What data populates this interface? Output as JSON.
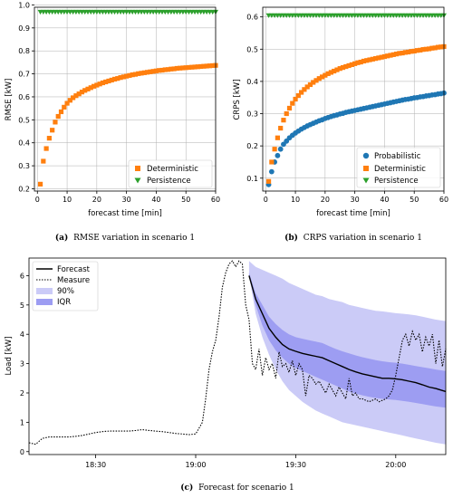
{
  "colors": {
    "orange": "#ff7f0e",
    "green": "#2ca02c",
    "blue": "#1f77b4",
    "band90": "#cbcbf7",
    "bandIqr": "#9d9df2",
    "forecast": "#000000"
  },
  "chart_data": [
    {
      "id": "rmse",
      "type": "scatter",
      "caption_tag": "(a)",
      "caption_text": "RMSE variation in scenario 1",
      "xlabel": "forecast time [min]",
      "ylabel": "RMSE [kW]",
      "xlim": [
        -1,
        60
      ],
      "ylim": [
        0.19,
        0.99
      ],
      "xticks": [
        0,
        10,
        20,
        30,
        40,
        50,
        60
      ],
      "yticks": [
        0.2,
        0.3,
        0.4,
        0.5,
        0.6,
        0.7,
        0.8,
        0.9,
        1.0
      ],
      "ytick_labels": [
        "0.2",
        "0.3",
        "0.4",
        "0.5",
        "0.6",
        "0.7",
        "0.8",
        "0.9",
        "1.0"
      ],
      "grid": true,
      "legend_position": "lower-right",
      "x": [
        1,
        2,
        3,
        4,
        5,
        6,
        7,
        8,
        9,
        10,
        11,
        12,
        13,
        14,
        15,
        16,
        17,
        18,
        19,
        20,
        21,
        22,
        23,
        24,
        25,
        26,
        27,
        28,
        29,
        30,
        31,
        32,
        33,
        34,
        35,
        36,
        37,
        38,
        39,
        40,
        41,
        42,
        43,
        44,
        45,
        46,
        47,
        48,
        49,
        50,
        51,
        52,
        53,
        54,
        55,
        56,
        57,
        58,
        59,
        60
      ],
      "series": [
        {
          "name": "Deterministic",
          "marker": "square",
          "color": "#ff7f0e",
          "values": [
            0.22,
            0.32,
            0.375,
            0.42,
            0.455,
            0.49,
            0.515,
            0.535,
            0.555,
            0.572,
            0.585,
            0.596,
            0.605,
            0.613,
            0.621,
            0.628,
            0.634,
            0.64,
            0.646,
            0.651,
            0.656,
            0.661,
            0.665,
            0.669,
            0.673,
            0.677,
            0.68,
            0.684,
            0.687,
            0.69,
            0.693,
            0.696,
            0.698,
            0.701,
            0.703,
            0.705,
            0.707,
            0.709,
            0.711,
            0.713,
            0.715,
            0.716,
            0.718,
            0.719,
            0.721,
            0.722,
            0.724,
            0.725,
            0.726,
            0.727,
            0.728,
            0.729,
            0.73,
            0.731,
            0.732,
            0.733,
            0.734,
            0.735,
            0.736,
            0.737
          ]
        },
        {
          "name": "Persistence",
          "marker": "triangle-down",
          "color": "#2ca02c",
          "values": [
            0.97,
            0.97,
            0.97,
            0.97,
            0.97,
            0.97,
            0.97,
            0.97,
            0.97,
            0.97,
            0.97,
            0.97,
            0.97,
            0.97,
            0.97,
            0.97,
            0.97,
            0.97,
            0.97,
            0.97,
            0.97,
            0.97,
            0.97,
            0.97,
            0.97,
            0.97,
            0.97,
            0.97,
            0.97,
            0.97,
            0.97,
            0.97,
            0.97,
            0.97,
            0.97,
            0.97,
            0.97,
            0.97,
            0.97,
            0.97,
            0.97,
            0.97,
            0.97,
            0.97,
            0.97,
            0.97,
            0.97,
            0.97,
            0.97,
            0.97,
            0.97,
            0.97,
            0.97,
            0.97,
            0.97,
            0.97,
            0.97,
            0.97,
            0.97,
            0.97
          ]
        }
      ]
    },
    {
      "id": "crps",
      "type": "scatter",
      "caption_tag": "(b)",
      "caption_text": "CRPS variation in scenario 1",
      "xlabel": "forecast time [min]",
      "ylabel": "CRPS [kW]",
      "xlim": [
        -1,
        60
      ],
      "ylim": [
        0.06,
        0.63
      ],
      "xticks": [
        0,
        10,
        20,
        30,
        40,
        50,
        60
      ],
      "yticks": [
        0.1,
        0.2,
        0.3,
        0.4,
        0.5,
        0.6
      ],
      "ytick_labels": [
        "0.1",
        "0.2",
        "0.3",
        "0.4",
        "0.5",
        "0.6"
      ],
      "grid": true,
      "legend_position": "lower-right",
      "x": [
        1,
        2,
        3,
        4,
        5,
        6,
        7,
        8,
        9,
        10,
        11,
        12,
        13,
        14,
        15,
        16,
        17,
        18,
        19,
        20,
        21,
        22,
        23,
        24,
        25,
        26,
        27,
        28,
        29,
        30,
        31,
        32,
        33,
        34,
        35,
        36,
        37,
        38,
        39,
        40,
        41,
        42,
        43,
        44,
        45,
        46,
        47,
        48,
        49,
        50,
        51,
        52,
        53,
        54,
        55,
        56,
        57,
        58,
        59,
        60
      ],
      "series": [
        {
          "name": "Probabilistic",
          "marker": "circle",
          "color": "#1f77b4",
          "values": [
            0.08,
            0.12,
            0.15,
            0.17,
            0.19,
            0.205,
            0.215,
            0.225,
            0.233,
            0.24,
            0.246,
            0.252,
            0.257,
            0.262,
            0.266,
            0.27,
            0.274,
            0.278,
            0.281,
            0.285,
            0.288,
            0.291,
            0.294,
            0.296,
            0.299,
            0.301,
            0.304,
            0.306,
            0.308,
            0.31,
            0.312,
            0.314,
            0.316,
            0.318,
            0.32,
            0.322,
            0.324,
            0.326,
            0.328,
            0.33,
            0.332,
            0.334,
            0.336,
            0.338,
            0.34,
            0.342,
            0.344,
            0.345,
            0.347,
            0.349,
            0.35,
            0.352,
            0.353,
            0.355,
            0.356,
            0.358,
            0.359,
            0.361,
            0.362,
            0.364
          ]
        },
        {
          "name": "Deterministic",
          "marker": "square",
          "color": "#ff7f0e",
          "values": [
            0.09,
            0.15,
            0.19,
            0.225,
            0.255,
            0.28,
            0.3,
            0.317,
            0.332,
            0.345,
            0.356,
            0.366,
            0.375,
            0.383,
            0.39,
            0.397,
            0.403,
            0.409,
            0.414,
            0.419,
            0.424,
            0.428,
            0.432,
            0.436,
            0.44,
            0.443,
            0.446,
            0.449,
            0.452,
            0.455,
            0.458,
            0.46,
            0.463,
            0.465,
            0.467,
            0.469,
            0.471,
            0.473,
            0.475,
            0.477,
            0.479,
            0.481,
            0.483,
            0.485,
            0.487,
            0.488,
            0.49,
            0.491,
            0.493,
            0.494,
            0.496,
            0.497,
            0.499,
            0.5,
            0.501,
            0.503,
            0.504,
            0.506,
            0.507,
            0.508
          ]
        },
        {
          "name": "Persistence",
          "marker": "triangle-down",
          "color": "#2ca02c",
          "values": [
            0.605,
            0.605,
            0.605,
            0.605,
            0.605,
            0.605,
            0.605,
            0.605,
            0.605,
            0.605,
            0.605,
            0.605,
            0.605,
            0.605,
            0.605,
            0.605,
            0.605,
            0.605,
            0.605,
            0.605,
            0.605,
            0.605,
            0.605,
            0.605,
            0.605,
            0.605,
            0.605,
            0.605,
            0.605,
            0.605,
            0.605,
            0.605,
            0.605,
            0.605,
            0.605,
            0.605,
            0.605,
            0.605,
            0.605,
            0.605,
            0.605,
            0.605,
            0.605,
            0.605,
            0.605,
            0.605,
            0.605,
            0.605,
            0.605,
            0.605,
            0.605,
            0.605,
            0.605,
            0.605,
            0.605,
            0.605,
            0.605,
            0.605,
            0.605,
            0.605
          ]
        }
      ]
    },
    {
      "id": "forecast",
      "type": "line",
      "caption_tag": "(c)",
      "caption_text": "Forecast for scenario 1",
      "xlabel": "",
      "ylabel": "Load [kW]",
      "xlim": [
        "18:10",
        "20:15"
      ],
      "ylim": [
        -0.1,
        6.6
      ],
      "xticks": [
        "18:30",
        "19:00",
        "19:30",
        "20:00"
      ],
      "yticks": [
        0,
        1,
        2,
        3,
        4,
        5,
        6
      ],
      "ytick_labels": [
        "0",
        "1",
        "2",
        "3",
        "4",
        "5",
        "6"
      ],
      "grid": false,
      "legend_position": "top-left",
      "legend": [
        "Forecast",
        "Measure",
        "90%",
        "IQR"
      ],
      "measure": {
        "time": [
          "18:10",
          "18:12",
          "18:14",
          "18:16",
          "18:18",
          "18:20",
          "18:22",
          "18:24",
          "18:26",
          "18:28",
          "18:30",
          "18:32",
          "18:34",
          "18:36",
          "18:38",
          "18:40",
          "18:42",
          "18:44",
          "18:46",
          "18:48",
          "18:50",
          "18:52",
          "18:54",
          "18:56",
          "18:58",
          "19:00",
          "19:02",
          "19:03",
          "19:04",
          "19:05",
          "19:06",
          "19:07",
          "19:08",
          "19:09",
          "19:10",
          "19:11",
          "19:12",
          "19:13",
          "19:14",
          "19:15",
          "19:16",
          "19:17",
          "19:18",
          "19:19",
          "19:20",
          "19:21",
          "19:22",
          "19:23",
          "19:24",
          "19:25",
          "19:26",
          "19:27",
          "19:28",
          "19:29",
          "19:30",
          "19:31",
          "19:32",
          "19:33",
          "19:34",
          "19:35",
          "19:36",
          "19:37",
          "19:38",
          "19:39",
          "19:40",
          "19:41",
          "19:42",
          "19:43",
          "19:44",
          "19:45",
          "19:46",
          "19:47",
          "19:48",
          "19:49",
          "19:50",
          "19:51",
          "19:52",
          "19:53",
          "19:54",
          "19:55",
          "19:56",
          "19:57",
          "19:58",
          "19:59",
          "20:00",
          "20:01",
          "20:02",
          "20:03",
          "20:04",
          "20:05",
          "20:06",
          "20:07",
          "20:08",
          "20:09",
          "20:10",
          "20:11",
          "20:12",
          "20:13",
          "20:14",
          "20:15"
        ],
        "values": [
          0.3,
          0.25,
          0.45,
          0.5,
          0.5,
          0.5,
          0.5,
          0.52,
          0.55,
          0.6,
          0.65,
          0.68,
          0.7,
          0.7,
          0.7,
          0.7,
          0.72,
          0.75,
          0.72,
          0.7,
          0.68,
          0.65,
          0.62,
          0.6,
          0.58,
          0.6,
          1.0,
          1.8,
          2.8,
          3.4,
          3.8,
          4.6,
          5.6,
          6.1,
          6.4,
          6.5,
          6.3,
          6.5,
          6.4,
          5.0,
          4.5,
          3.0,
          2.8,
          3.5,
          2.6,
          3.2,
          2.8,
          3.0,
          2.5,
          3.4,
          2.9,
          3.0,
          2.7,
          3.1,
          2.6,
          3.0,
          2.8,
          1.9,
          2.6,
          2.5,
          2.3,
          2.4,
          2.2,
          2.0,
          2.3,
          2.1,
          1.9,
          2.2,
          2.0,
          1.8,
          2.5,
          1.9,
          2.0,
          1.8,
          1.8,
          1.75,
          1.7,
          1.75,
          1.8,
          1.7,
          1.75,
          1.8,
          1.9,
          2.1,
          2.6,
          3.2,
          3.8,
          4.0,
          3.6,
          4.1,
          3.8,
          4.0,
          3.4,
          3.9,
          3.6,
          4.0,
          3.0,
          3.8,
          2.9,
          3.5
        ]
      },
      "forecast": {
        "time": [
          "19:16",
          "19:18",
          "19:20",
          "19:22",
          "19:24",
          "19:26",
          "19:28",
          "19:30",
          "19:32",
          "19:34",
          "19:36",
          "19:38",
          "19:40",
          "19:42",
          "19:44",
          "19:46",
          "19:48",
          "19:50",
          "19:52",
          "19:54",
          "19:56",
          "19:58",
          "20:00",
          "20:02",
          "20:04",
          "20:06",
          "20:08",
          "20:10",
          "20:12",
          "20:15"
        ],
        "center": [
          6.0,
          5.2,
          4.7,
          4.2,
          3.9,
          3.65,
          3.5,
          3.42,
          3.35,
          3.3,
          3.25,
          3.2,
          3.1,
          3.0,
          2.9,
          2.8,
          2.72,
          2.65,
          2.6,
          2.55,
          2.5,
          2.5,
          2.48,
          2.45,
          2.4,
          2.35,
          2.28,
          2.2,
          2.15,
          2.05
        ],
        "p05": [
          6.0,
          4.7,
          3.9,
          3.3,
          2.8,
          2.4,
          2.1,
          1.9,
          1.7,
          1.55,
          1.4,
          1.3,
          1.2,
          1.1,
          1.0,
          0.95,
          0.9,
          0.85,
          0.8,
          0.75,
          0.7,
          0.65,
          0.6,
          0.55,
          0.5,
          0.45,
          0.4,
          0.35,
          0.3,
          0.25
        ],
        "p95": [
          6.5,
          6.3,
          6.2,
          6.1,
          6.0,
          5.9,
          5.75,
          5.65,
          5.55,
          5.45,
          5.35,
          5.3,
          5.2,
          5.15,
          5.1,
          5.0,
          4.95,
          4.9,
          4.85,
          4.8,
          4.78,
          4.75,
          4.72,
          4.7,
          4.68,
          4.65,
          4.6,
          4.55,
          4.5,
          4.45
        ],
        "p25": [
          6.0,
          5.0,
          4.3,
          3.8,
          3.45,
          3.2,
          3.0,
          2.85,
          2.75,
          2.65,
          2.55,
          2.45,
          2.35,
          2.25,
          2.15,
          2.05,
          1.98,
          1.92,
          1.87,
          1.83,
          1.8,
          1.78,
          1.76,
          1.73,
          1.7,
          1.66,
          1.62,
          1.58,
          1.54,
          1.5
        ],
        "p75": [
          6.1,
          5.4,
          5.0,
          4.6,
          4.35,
          4.15,
          4.0,
          3.9,
          3.85,
          3.8,
          3.75,
          3.7,
          3.6,
          3.5,
          3.42,
          3.35,
          3.28,
          3.22,
          3.17,
          3.12,
          3.08,
          3.05,
          3.03,
          3.0,
          2.96,
          2.92,
          2.88,
          2.84,
          2.8,
          2.75
        ]
      }
    }
  ]
}
